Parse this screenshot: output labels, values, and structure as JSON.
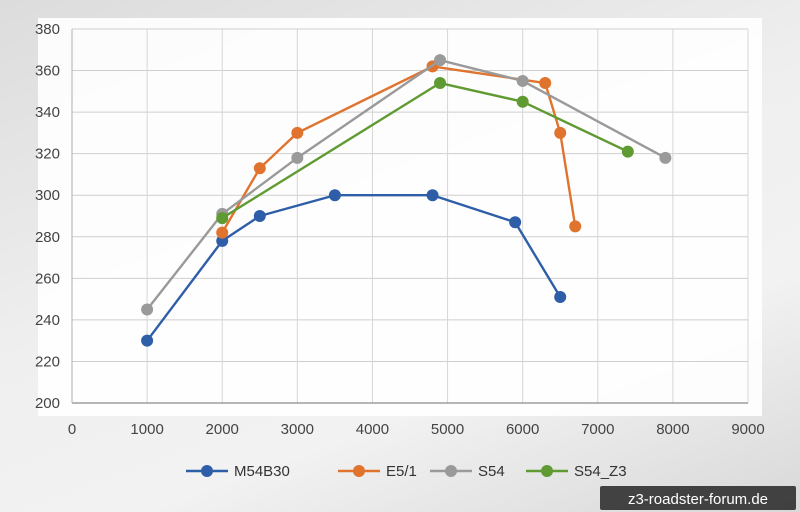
{
  "chart_data": {
    "type": "line",
    "title": "",
    "xlabel": "",
    "ylabel": "",
    "xlim": [
      0,
      9000
    ],
    "ylim": [
      200,
      380
    ],
    "x_ticks": [
      0,
      1000,
      2000,
      3000,
      4000,
      5000,
      6000,
      7000,
      8000,
      9000
    ],
    "y_ticks": [
      200,
      220,
      240,
      260,
      280,
      300,
      320,
      340,
      360,
      380
    ],
    "grid": true,
    "legend_position": "bottom",
    "series": [
      {
        "name": "M54B30",
        "color": "#2e5ea8",
        "points": [
          [
            1000,
            230
          ],
          [
            2000,
            278
          ],
          [
            2500,
            290
          ],
          [
            3500,
            300
          ],
          [
            4800,
            300
          ],
          [
            5900,
            287
          ],
          [
            6500,
            251
          ]
        ]
      },
      {
        "name": "E5/1",
        "color": "#e0742e",
        "points": [
          [
            2000,
            282
          ],
          [
            2500,
            313
          ],
          [
            3000,
            330
          ],
          [
            4800,
            362
          ],
          [
            6300,
            354
          ],
          [
            6500,
            330
          ],
          [
            6700,
            285
          ]
        ]
      },
      {
        "name": "S54",
        "color": "#9a9a9a",
        "points": [
          [
            1000,
            245
          ],
          [
            2000,
            291
          ],
          [
            3000,
            318
          ],
          [
            4900,
            365
          ],
          [
            6000,
            355
          ],
          [
            7900,
            318
          ]
        ]
      },
      {
        "name": "S54_Z3",
        "color": "#5f9a32",
        "points": [
          [
            2000,
            289
          ],
          [
            4900,
            354
          ],
          [
            6000,
            345
          ],
          [
            7400,
            321
          ]
        ]
      }
    ]
  },
  "watermark": "z3-roadster-forum.de"
}
